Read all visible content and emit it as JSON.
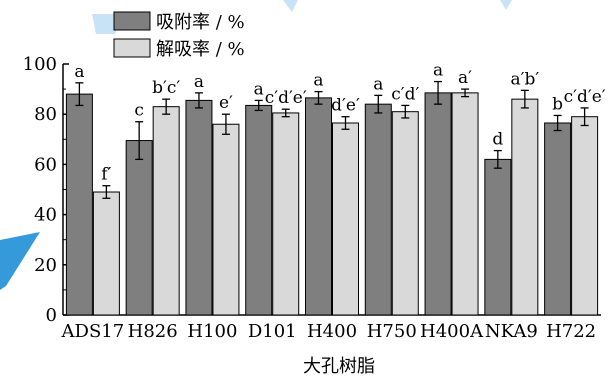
{
  "chart_data": {
    "type": "bar",
    "xlabel": "大孔树脂",
    "ylabel": "",
    "ylim": [
      0,
      100
    ],
    "yticks": [
      0,
      20,
      40,
      60,
      80,
      100
    ],
    "categories": [
      "ADS17",
      "H826",
      "H100",
      "D101",
      "H400",
      "H750",
      "H400A",
      "NKA9",
      "H722"
    ],
    "legend_position": "top-left",
    "grid": false,
    "series": [
      {
        "name": "吸附率 / %",
        "color": "#7f7f7f",
        "values": [
          88,
          69.5,
          85.5,
          83.5,
          86.5,
          84,
          88.5,
          62,
          76.5
        ],
        "errors": [
          4.5,
          7.5,
          3,
          2,
          2.5,
          3.5,
          4.5,
          3.5,
          3
        ],
        "labels": [
          "a",
          "c",
          "a",
          "a",
          "a",
          "a",
          "a",
          "d",
          "b"
        ]
      },
      {
        "name": "解吸率 / %",
        "color": "#d9d9d9",
        "values": [
          49,
          83,
          76,
          80.5,
          76.5,
          81,
          88.5,
          86,
          79
        ],
        "errors": [
          2.5,
          3,
          4,
          1.5,
          2.5,
          2.5,
          1.5,
          3.5,
          3.5
        ],
        "labels": [
          "f′",
          "b′c′",
          "e′",
          "c′d′e′",
          "d′e′",
          "c′d′",
          "a′",
          "a′b′",
          "c′d′e′"
        ]
      }
    ]
  },
  "watermark": {
    "color": "#1f8fd6"
  }
}
